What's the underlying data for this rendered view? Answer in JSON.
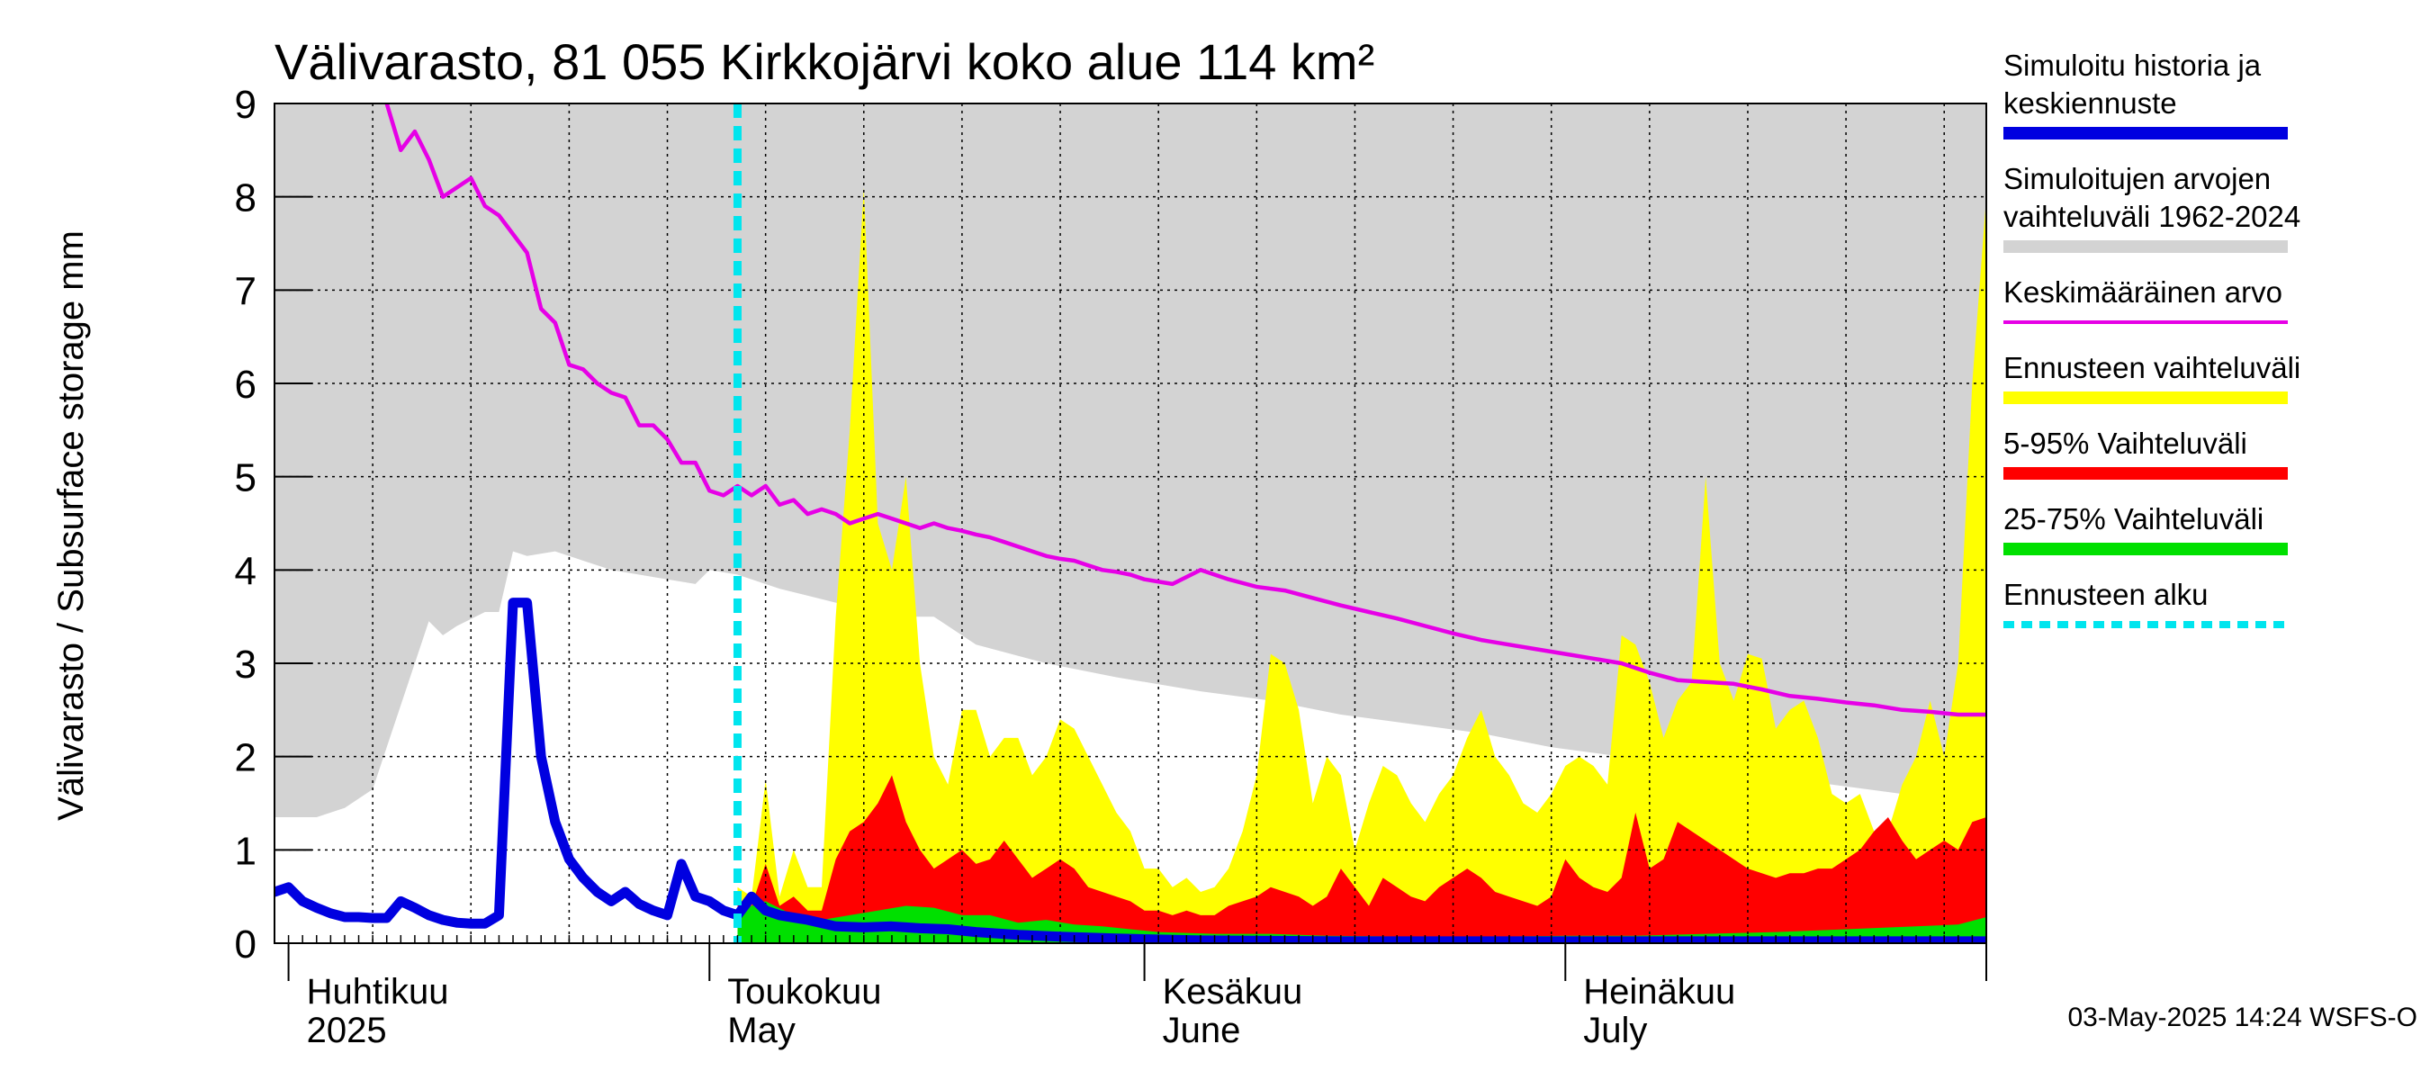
{
  "chart_data": {
    "type": "area",
    "title": "Välivarasto, 81 055 Kirkkojärvi koko alue 114 km²",
    "ylabel": "Välivarasto / Subsurface storage  mm",
    "ylim": [
      0,
      9
    ],
    "y_ticks": [
      "0",
      "1",
      "2",
      "3",
      "4",
      "5",
      "6",
      "7",
      "8",
      "9"
    ],
    "x_start": "2025-03-31",
    "x_end": "2025-07-31",
    "forecast_start": "2025-05-03",
    "months": [
      {
        "date": "2025-04-01",
        "label1": "Huhtikuu",
        "label2": "2025"
      },
      {
        "date": "2025-05-01",
        "label1": "Toukokuu",
        "label2": "May"
      },
      {
        "date": "2025-06-01",
        "label1": "Kesäkuu",
        "label2": "June"
      },
      {
        "date": "2025-07-01",
        "label1": "Heinäkuu",
        "label2": "July"
      }
    ],
    "grid": true,
    "legend_position": "right",
    "footer": "03-May-2025 14:24 WSFS-O",
    "colors": {
      "history": "#0000e0",
      "range": "#d3d3d3",
      "mean": "#e600e6",
      "forecast_range": "#ffff00",
      "p5_95": "#ff0000",
      "p25_75": "#00e000",
      "forecast_start": "#00e5ee"
    },
    "legend": [
      {
        "key": "history",
        "lines": [
          "Simuloitu historia ja",
          "keskiennuste"
        ],
        "style": "thick"
      },
      {
        "key": "range",
        "lines": [
          "Simuloitujen arvojen",
          "vaihteluväli 1962-2024"
        ],
        "style": "thick"
      },
      {
        "key": "mean",
        "lines": [
          "Keskimääräinen arvo"
        ],
        "style": "thin"
      },
      {
        "key": "forecast_range",
        "lines": [
          "Ennusteen vaihteluväli"
        ],
        "style": "thick"
      },
      {
        "key": "p5_95",
        "lines": [
          "5-95% Vaihteluväli"
        ],
        "style": "thick"
      },
      {
        "key": "p25_75",
        "lines": [
          "25-75% Vaihteluväli"
        ],
        "style": "thick"
      },
      {
        "key": "forecast_start",
        "lines": [
          "Ennusteen alku"
        ],
        "style": "dashed"
      }
    ],
    "series": [
      {
        "key": "range",
        "x": [
          "2025-03-31",
          "2025-04-03",
          "2025-04-05",
          "2025-04-07",
          "2025-04-08",
          "2025-04-10",
          "2025-04-11",
          "2025-04-12",
          "2025-04-13",
          "2025-04-15",
          "2025-04-16",
          "2025-04-17",
          "2025-04-18",
          "2025-04-20",
          "2025-04-22",
          "2025-04-24",
          "2025-04-26",
          "2025-04-28",
          "2025-04-30",
          "2025-05-01",
          "2025-05-03",
          "2025-05-06",
          "2025-05-10",
          "2025-05-14",
          "2025-05-17",
          "2025-05-20",
          "2025-05-25",
          "2025-05-30",
          "2025-06-05",
          "2025-06-10",
          "2025-06-15",
          "2025-06-20",
          "2025-06-25",
          "2025-06-30",
          "2025-07-05",
          "2025-07-10",
          "2025-07-15",
          "2025-07-20",
          "2025-07-25",
          "2025-07-31"
        ],
        "lower": [
          1.35,
          1.35,
          1.45,
          1.65,
          2.1,
          3.0,
          3.45,
          3.3,
          3.4,
          3.55,
          3.55,
          4.2,
          4.15,
          4.2,
          4.1,
          4.0,
          3.95,
          3.9,
          3.85,
          4.0,
          3.95,
          3.8,
          3.65,
          3.5,
          3.5,
          3.2,
          3.0,
          2.85,
          2.7,
          2.6,
          2.45,
          2.35,
          2.25,
          2.1,
          2.0,
          1.9,
          1.8,
          1.7,
          1.6,
          1.45
        ],
        "upper": [
          9,
          9,
          9,
          9,
          9,
          9,
          9,
          9,
          9,
          9,
          9,
          9,
          9,
          9,
          9,
          9,
          9,
          9,
          9,
          9,
          9,
          9,
          9,
          9,
          9,
          9,
          9,
          9,
          9,
          9,
          9,
          9,
          9,
          9,
          9,
          9,
          9,
          9,
          9,
          9
        ]
      },
      {
        "key": "mean",
        "x": [
          "2025-04-08",
          "2025-04-09",
          "2025-04-10",
          "2025-04-11",
          "2025-04-12",
          "2025-04-13",
          "2025-04-14",
          "2025-04-15",
          "2025-04-16",
          "2025-04-17",
          "2025-04-18",
          "2025-04-19",
          "2025-04-20",
          "2025-04-21",
          "2025-04-22",
          "2025-04-23",
          "2025-04-24",
          "2025-04-25",
          "2025-04-26",
          "2025-04-27",
          "2025-04-28",
          "2025-04-29",
          "2025-04-30",
          "2025-05-01",
          "2025-05-02",
          "2025-05-03",
          "2025-05-04",
          "2025-05-05",
          "2025-05-06",
          "2025-05-07",
          "2025-05-08",
          "2025-05-09",
          "2025-05-10",
          "2025-05-11",
          "2025-05-12",
          "2025-05-13",
          "2025-05-14",
          "2025-05-15",
          "2025-05-16",
          "2025-05-17",
          "2025-05-18",
          "2025-05-19",
          "2025-05-20",
          "2025-05-21",
          "2025-05-22",
          "2025-05-23",
          "2025-05-24",
          "2025-05-25",
          "2025-05-26",
          "2025-05-27",
          "2025-05-28",
          "2025-05-29",
          "2025-05-30",
          "2025-05-31",
          "2025-06-01",
          "2025-06-03",
          "2025-06-05",
          "2025-06-07",
          "2025-06-09",
          "2025-06-11",
          "2025-06-13",
          "2025-06-15",
          "2025-06-17",
          "2025-06-19",
          "2025-06-21",
          "2025-06-23",
          "2025-06-25",
          "2025-06-27",
          "2025-06-29",
          "2025-07-01",
          "2025-07-03",
          "2025-07-05",
          "2025-07-07",
          "2025-07-09",
          "2025-07-11",
          "2025-07-13",
          "2025-07-15",
          "2025-07-17",
          "2025-07-19",
          "2025-07-21",
          "2025-07-23",
          "2025-07-25",
          "2025-07-27",
          "2025-07-29",
          "2025-07-31"
        ],
        "values": [
          9.0,
          8.5,
          8.7,
          8.4,
          8.0,
          8.1,
          8.2,
          7.9,
          7.8,
          7.6,
          7.4,
          6.8,
          6.65,
          6.2,
          6.15,
          6.0,
          5.9,
          5.85,
          5.55,
          5.55,
          5.4,
          5.15,
          5.15,
          4.85,
          4.8,
          4.9,
          4.8,
          4.9,
          4.7,
          4.75,
          4.6,
          4.65,
          4.6,
          4.5,
          4.55,
          4.6,
          4.55,
          4.5,
          4.45,
          4.5,
          4.45,
          4.42,
          4.38,
          4.35,
          4.3,
          4.25,
          4.2,
          4.15,
          4.12,
          4.1,
          4.05,
          4.0,
          3.98,
          3.95,
          3.9,
          3.85,
          4.0,
          3.9,
          3.82,
          3.78,
          3.7,
          3.62,
          3.55,
          3.48,
          3.4,
          3.32,
          3.25,
          3.2,
          3.15,
          3.1,
          3.05,
          3.0,
          2.9,
          2.82,
          2.8,
          2.78,
          2.72,
          2.65,
          2.62,
          2.58,
          2.55,
          2.5,
          2.48,
          2.45,
          2.45
        ]
      },
      {
        "key": "forecast_range",
        "x": [
          "2025-05-03",
          "2025-05-04",
          "2025-05-05",
          "2025-05-06",
          "2025-05-07",
          "2025-05-08",
          "2025-05-09",
          "2025-05-10",
          "2025-05-11",
          "2025-05-12",
          "2025-05-13",
          "2025-05-14",
          "2025-05-15",
          "2025-05-16",
          "2025-05-17",
          "2025-05-18",
          "2025-05-19",
          "2025-05-20",
          "2025-05-21",
          "2025-05-22",
          "2025-05-23",
          "2025-05-24",
          "2025-05-25",
          "2025-05-26",
          "2025-05-27",
          "2025-05-28",
          "2025-05-29",
          "2025-05-30",
          "2025-05-31",
          "2025-06-01",
          "2025-06-02",
          "2025-06-03",
          "2025-06-04",
          "2025-06-05",
          "2025-06-06",
          "2025-06-07",
          "2025-06-08",
          "2025-06-09",
          "2025-06-10",
          "2025-06-11",
          "2025-06-12",
          "2025-06-13",
          "2025-06-14",
          "2025-06-15",
          "2025-06-16",
          "2025-06-17",
          "2025-06-18",
          "2025-06-19",
          "2025-06-20",
          "2025-06-21",
          "2025-06-22",
          "2025-06-23",
          "2025-06-24",
          "2025-06-25",
          "2025-06-26",
          "2025-06-27",
          "2025-06-28",
          "2025-06-29",
          "2025-06-30",
          "2025-07-01",
          "2025-07-02",
          "2025-07-03",
          "2025-07-04",
          "2025-07-05",
          "2025-07-06",
          "2025-07-07",
          "2025-07-08",
          "2025-07-09",
          "2025-07-10",
          "2025-07-11",
          "2025-07-12",
          "2025-07-13",
          "2025-07-14",
          "2025-07-15",
          "2025-07-16",
          "2025-07-17",
          "2025-07-18",
          "2025-07-19",
          "2025-07-20",
          "2025-07-21",
          "2025-07-22",
          "2025-07-23",
          "2025-07-24",
          "2025-07-25",
          "2025-07-26",
          "2025-07-27",
          "2025-07-28",
          "2025-07-29",
          "2025-07-30",
          "2025-07-31"
        ],
        "values": [
          0.6,
          0.5,
          1.75,
          0.5,
          1.0,
          0.6,
          0.6,
          3.5,
          5.5,
          8.1,
          4.5,
          4.0,
          5.0,
          3.0,
          2.0,
          1.7,
          2.5,
          2.5,
          2.0,
          2.2,
          2.2,
          1.8,
          2.0,
          2.4,
          2.3,
          2.0,
          1.7,
          1.4,
          1.2,
          0.8,
          0.8,
          0.6,
          0.7,
          0.55,
          0.6,
          0.8,
          1.2,
          1.8,
          3.1,
          3.0,
          2.5,
          1.5,
          2.0,
          1.8,
          1.0,
          1.5,
          1.9,
          1.8,
          1.5,
          1.3,
          1.6,
          1.8,
          2.2,
          2.5,
          2.0,
          1.8,
          1.5,
          1.4,
          1.6,
          1.9,
          2.0,
          1.9,
          1.7,
          3.3,
          3.2,
          2.8,
          2.2,
          2.6,
          2.8,
          5.0,
          3.0,
          2.6,
          3.1,
          3.05,
          2.3,
          2.5,
          2.6,
          2.2,
          1.6,
          1.5,
          1.6,
          1.2,
          1.2,
          1.7,
          2.0,
          2.6,
          2.0,
          3.0,
          6.0,
          8.0
        ]
      },
      {
        "key": "p5_95",
        "x": [
          "2025-05-03",
          "2025-05-04",
          "2025-05-05",
          "2025-05-06",
          "2025-05-07",
          "2025-05-08",
          "2025-05-09",
          "2025-05-10",
          "2025-05-11",
          "2025-05-12",
          "2025-05-13",
          "2025-05-14",
          "2025-05-15",
          "2025-05-16",
          "2025-05-17",
          "2025-05-18",
          "2025-05-19",
          "2025-05-20",
          "2025-05-21",
          "2025-05-22",
          "2025-05-23",
          "2025-05-24",
          "2025-05-25",
          "2025-05-26",
          "2025-05-27",
          "2025-05-28",
          "2025-05-29",
          "2025-05-30",
          "2025-05-31",
          "2025-06-01",
          "2025-06-02",
          "2025-06-03",
          "2025-06-04",
          "2025-06-05",
          "2025-06-06",
          "2025-06-07",
          "2025-06-08",
          "2025-06-09",
          "2025-06-10",
          "2025-06-11",
          "2025-06-12",
          "2025-06-13",
          "2025-06-14",
          "2025-06-15",
          "2025-06-16",
          "2025-06-17",
          "2025-06-18",
          "2025-06-19",
          "2025-06-20",
          "2025-06-21",
          "2025-06-22",
          "2025-06-23",
          "2025-06-24",
          "2025-06-25",
          "2025-06-26",
          "2025-06-27",
          "2025-06-28",
          "2025-06-29",
          "2025-06-30",
          "2025-07-01",
          "2025-07-02",
          "2025-07-03",
          "2025-07-04",
          "2025-07-05",
          "2025-07-06",
          "2025-07-07",
          "2025-07-08",
          "2025-07-09",
          "2025-07-10",
          "2025-07-11",
          "2025-07-12",
          "2025-07-13",
          "2025-07-14",
          "2025-07-15",
          "2025-07-16",
          "2025-07-17",
          "2025-07-18",
          "2025-07-19",
          "2025-07-20",
          "2025-07-21",
          "2025-07-22",
          "2025-07-23",
          "2025-07-24",
          "2025-07-25",
          "2025-07-26",
          "2025-07-27",
          "2025-07-28",
          "2025-07-29",
          "2025-07-30",
          "2025-07-31"
        ],
        "values": [
          0.45,
          0.4,
          0.85,
          0.4,
          0.5,
          0.35,
          0.35,
          0.9,
          1.2,
          1.3,
          1.5,
          1.8,
          1.3,
          1.0,
          0.8,
          0.9,
          1.0,
          0.85,
          0.9,
          1.1,
          0.9,
          0.7,
          0.8,
          0.9,
          0.8,
          0.6,
          0.55,
          0.5,
          0.45,
          0.35,
          0.35,
          0.3,
          0.35,
          0.3,
          0.3,
          0.4,
          0.45,
          0.5,
          0.6,
          0.55,
          0.5,
          0.4,
          0.5,
          0.8,
          0.6,
          0.4,
          0.7,
          0.6,
          0.5,
          0.45,
          0.6,
          0.7,
          0.8,
          0.7,
          0.55,
          0.5,
          0.45,
          0.4,
          0.5,
          0.9,
          0.7,
          0.6,
          0.55,
          0.7,
          1.4,
          0.8,
          0.9,
          1.3,
          1.2,
          1.1,
          1.0,
          0.9,
          0.8,
          0.75,
          0.7,
          0.75,
          0.75,
          0.8,
          0.8,
          0.9,
          1.0,
          1.2,
          1.35,
          1.1,
          0.9,
          1.0,
          1.1,
          1.0,
          1.3,
          1.35
        ]
      },
      {
        "key": "p25_75",
        "x": [
          "2025-05-03",
          "2025-05-05",
          "2025-05-07",
          "2025-05-09",
          "2025-05-11",
          "2025-05-13",
          "2025-05-15",
          "2025-05-17",
          "2025-05-19",
          "2025-05-21",
          "2025-05-23",
          "2025-05-25",
          "2025-05-27",
          "2025-05-29",
          "2025-05-31",
          "2025-06-02",
          "2025-06-06",
          "2025-06-10",
          "2025-06-14",
          "2025-06-20",
          "2025-06-26",
          "2025-07-01",
          "2025-07-06",
          "2025-07-11",
          "2025-07-16",
          "2025-07-21",
          "2025-07-26",
          "2025-07-29",
          "2025-07-31"
        ],
        "values": [
          0.35,
          0.45,
          0.3,
          0.25,
          0.3,
          0.35,
          0.4,
          0.38,
          0.3,
          0.3,
          0.22,
          0.25,
          0.2,
          0.18,
          0.15,
          0.12,
          0.1,
          0.1,
          0.08,
          0.07,
          0.07,
          0.08,
          0.08,
          0.1,
          0.12,
          0.15,
          0.18,
          0.2,
          0.28
        ]
      },
      {
        "key": "history",
        "x": [
          "2025-03-31",
          "2025-04-01",
          "2025-04-02",
          "2025-04-03",
          "2025-04-04",
          "2025-04-05",
          "2025-04-06",
          "2025-04-07",
          "2025-04-08",
          "2025-04-09",
          "2025-04-10",
          "2025-04-11",
          "2025-04-12",
          "2025-04-13",
          "2025-04-14",
          "2025-04-15",
          "2025-04-16",
          "2025-04-17",
          "2025-04-18",
          "2025-04-19",
          "2025-04-20",
          "2025-04-21",
          "2025-04-22",
          "2025-04-23",
          "2025-04-24",
          "2025-04-25",
          "2025-04-26",
          "2025-04-27",
          "2025-04-28",
          "2025-04-29",
          "2025-04-30",
          "2025-05-01",
          "2025-05-02",
          "2025-05-03",
          "2025-05-04",
          "2025-05-05",
          "2025-05-06",
          "2025-05-08",
          "2025-05-10",
          "2025-05-12",
          "2025-05-14",
          "2025-05-16",
          "2025-05-18",
          "2025-05-20",
          "2025-05-23",
          "2025-05-26",
          "2025-05-30",
          "2025-06-05",
          "2025-06-15",
          "2025-06-25",
          "2025-07-05",
          "2025-07-15",
          "2025-07-25",
          "2025-07-31"
        ],
        "values": [
          0.55,
          0.6,
          0.45,
          0.38,
          0.32,
          0.28,
          0.28,
          0.27,
          0.27,
          0.45,
          0.38,
          0.3,
          0.25,
          0.22,
          0.21,
          0.21,
          0.3,
          3.65,
          3.65,
          2.0,
          1.3,
          0.9,
          0.7,
          0.55,
          0.45,
          0.55,
          0.42,
          0.35,
          0.3,
          0.85,
          0.5,
          0.45,
          0.35,
          0.3,
          0.5,
          0.35,
          0.3,
          0.25,
          0.18,
          0.17,
          0.18,
          0.16,
          0.15,
          0.12,
          0.09,
          0.07,
          0.05,
          0.03,
          0.02,
          0.02,
          0.02,
          0.02,
          0.02,
          0.02
        ]
      }
    ]
  }
}
